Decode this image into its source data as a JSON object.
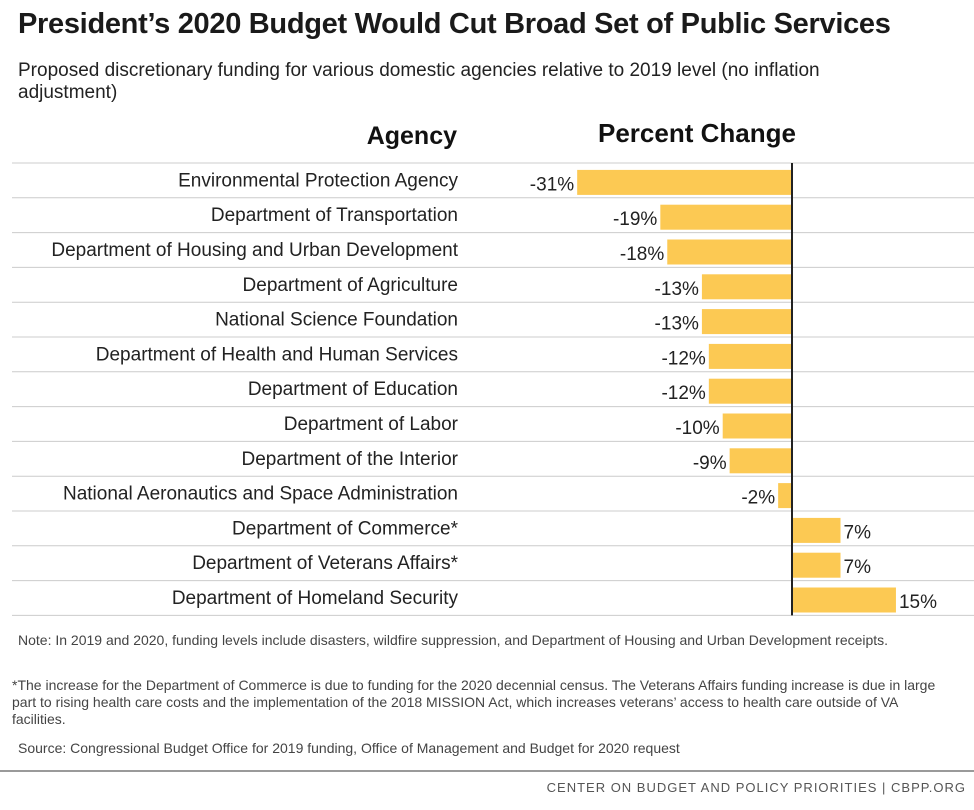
{
  "title": "President’s 2020 Budget Would Cut Broad Set of Public Services",
  "subtitle": "Proposed discretionary funding for various domestic agencies relative to 2019 level (no inflation adjustment)",
  "headers": {
    "agency": "Agency",
    "percent": "Percent Change"
  },
  "colors": {
    "bar": "#fcc953",
    "grid": "#cccccc",
    "axis": "#222222"
  },
  "chart_data": {
    "type": "bar",
    "orientation": "horizontal",
    "categories": [
      "Environmental Protection Agency",
      "Department of Transportation",
      "Department of Housing and Urban Development",
      "Department of Agriculture",
      "National Science Foundation",
      "Department of Health and Human Services",
      "Department of Education",
      "Department of Labor",
      "Department of the Interior",
      "National Aeronautics and Space Administration",
      "Department of Commerce*",
      "Department of Veterans Affairs*",
      "Department of Homeland Security"
    ],
    "values": [
      -31,
      -19,
      -18,
      -13,
      -13,
      -12,
      -12,
      -10,
      -9,
      -2,
      7,
      7,
      15
    ],
    "labels": [
      "-31%",
      "-19%",
      "-18%",
      "-13%",
      "-13%",
      "-12%",
      "-12%",
      "-10%",
      "-9%",
      "-2%",
      "7%",
      "7%",
      "15%"
    ],
    "xlim": [
      -31,
      15
    ],
    "unit": "%",
    "grid": false
  },
  "notes": {
    "note": "Note: In 2019 and 2020, funding levels include disasters, wildfire suppression, and Department of Housing and Urban Development receipts.",
    "footnote": "*The increase for the Department of Commerce is due to funding for the 2020 decennial census. The Veterans Affairs funding increase is due in large part to rising health care costs and the implementation of the 2018 MISSION Act, which increases veterans’ access to health care outside of VA facilities.",
    "source": "Source: Congressional Budget Office for 2019 funding, Office of Management and Budget for 2020 request"
  },
  "footer": "CENTER ON BUDGET AND POLICY PRIORITIES | CBPP.ORG"
}
